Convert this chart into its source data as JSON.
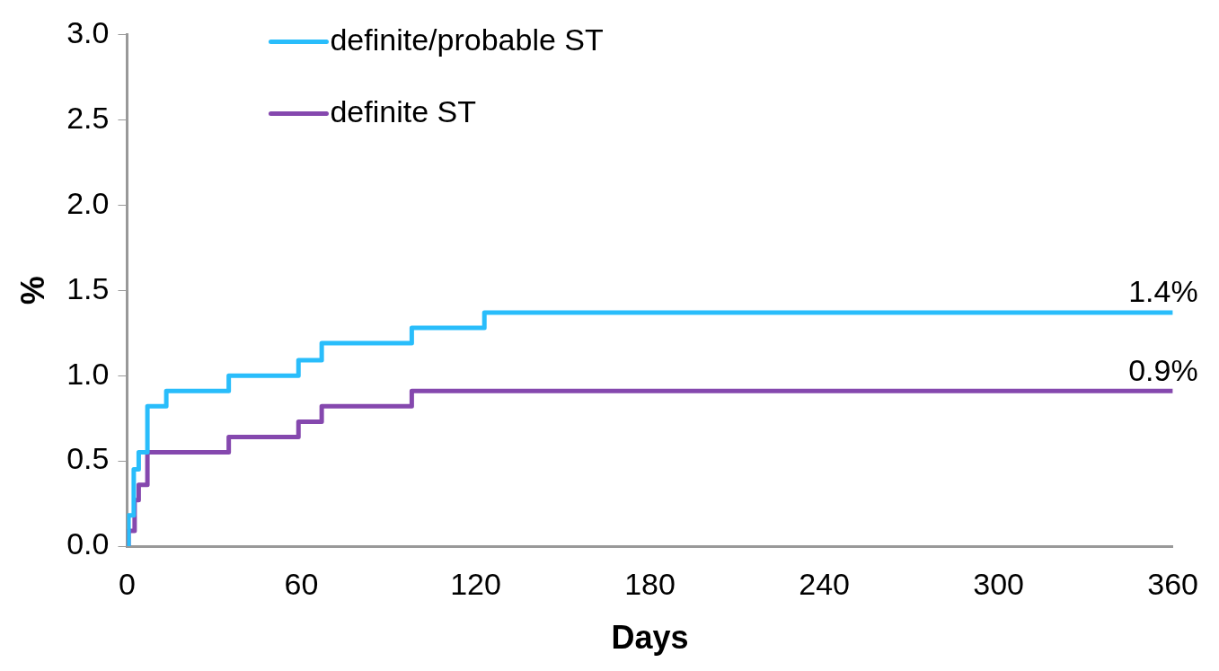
{
  "chart_data": {
    "type": "step",
    "xlabel": "Days",
    "ylabel": "%",
    "xlim": [
      0,
      360
    ],
    "xticks": [
      0,
      60,
      120,
      180,
      240,
      300,
      360
    ],
    "ylim": [
      0,
      3
    ],
    "yticks": [
      {
        "value": 0,
        "label": "0.0"
      },
      {
        "value": 0.5,
        "label": "0.5"
      },
      {
        "value": 1,
        "label": "1.0"
      },
      {
        "value": 1.5,
        "label": "1.5"
      },
      {
        "value": 2,
        "label": "2.0"
      },
      {
        "value": 2.5,
        "label": "2.5"
      },
      {
        "value": 3,
        "label": "3.0"
      }
    ],
    "grid": false,
    "legend": "top left",
    "marker": "none",
    "line_style": "solid",
    "series": [
      {
        "name": "definite/probable ST",
        "color": "#29bdfb",
        "x": [
          0,
          0.5,
          2.3,
          4,
          7,
          13.5,
          35,
          59,
          67,
          98,
          123,
          360
        ],
        "values": [
          0,
          0.18,
          0.45,
          0.55,
          0.82,
          0.91,
          1.0,
          1.09,
          1.19,
          1.28,
          1.37,
          1.37
        ]
      },
      {
        "name": "definite ST",
        "color": "#8548ae",
        "x": [
          0,
          0.5,
          2.6,
          4,
          7,
          35,
          59,
          67,
          98,
          360
        ],
        "values": [
          0,
          0.09,
          0.27,
          0.36,
          0.55,
          0.64,
          0.73,
          0.82,
          0.91,
          0.91
        ]
      }
    ],
    "annotations": [
      {
        "text": "1.4%",
        "x": 360,
        "y": 1.37
      },
      {
        "text": "0.9%",
        "x": 360,
        "y": 0.91
      }
    ]
  }
}
